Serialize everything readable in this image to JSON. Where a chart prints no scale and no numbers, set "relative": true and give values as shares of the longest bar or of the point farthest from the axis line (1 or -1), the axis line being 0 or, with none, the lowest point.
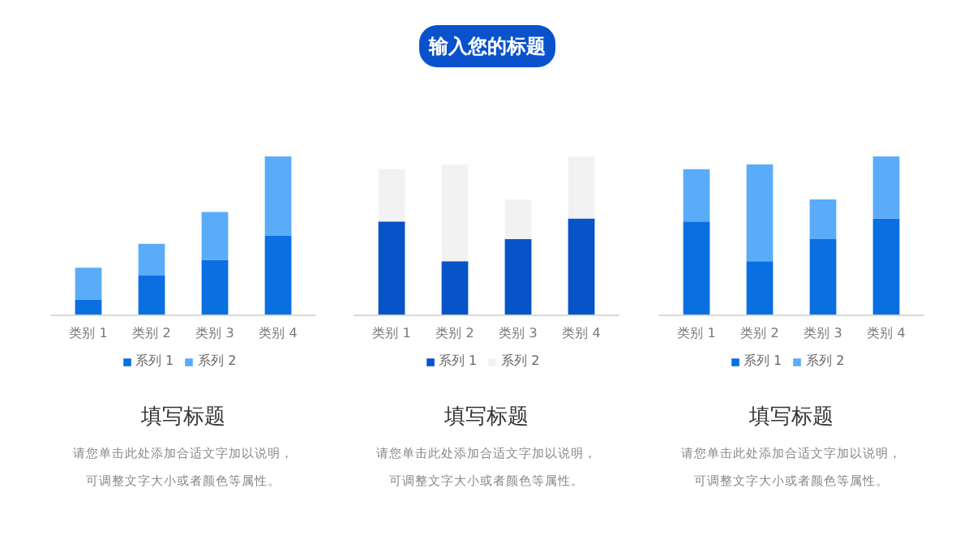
{
  "chart_data": [
    {
      "type": "other",
      "title": "输入您的标题"
    },
    {
      "type": "bar",
      "stacked": true,
      "relative": true,
      "legend": "bottom",
      "title": "填写标题",
      "annotations": [
        "请您单击此处添加合适文字加以说明，",
        "可调整文字大小或者颜色等属性。"
      ],
      "categories": [
        "类别 1",
        "类别 2",
        "类别 3",
        "类别 4"
      ],
      "series": [
        {
          "name": "系列 1",
          "color": "#0a6fe0",
          "values": [
            0.1,
            0.25,
            0.35,
            0.5
          ]
        },
        {
          "name": "系列 2",
          "color": "#5aacf8",
          "values": [
            0.2,
            0.2,
            0.3,
            0.5
          ]
        }
      ]
    },
    {
      "type": "bar",
      "stacked": true,
      "relative": true,
      "legend": "bottom",
      "title": "填写标题",
      "annotations": [
        "请您单击此处添加合适文字加以说明，",
        "可调整文字大小或者颜色等属性。"
      ],
      "categories": [
        "类别 1",
        "类别 2",
        "类别 3",
        "类别 4"
      ],
      "series": [
        {
          "name": "系列 1",
          "color": "#0753c8",
          "values": [
            0.59,
            0.34,
            0.48,
            0.61
          ]
        },
        {
          "name": "系列 2",
          "color": "#f2f2f2",
          "values": [
            0.33,
            0.61,
            0.25,
            0.39
          ]
        }
      ]
    },
    {
      "type": "bar",
      "stacked": true,
      "relative": true,
      "legend": "bottom",
      "title": "填写标题",
      "annotations": [
        "请您单击此处添加合适文字加以说明，",
        "可调整文字大小或者颜色等属性。"
      ],
      "categories": [
        "类别 1",
        "类别 2",
        "类别 3",
        "类别 4"
      ],
      "series": [
        {
          "name": "系列 1",
          "color": "#0a6fe0",
          "values": [
            0.59,
            0.34,
            0.48,
            0.61
          ]
        },
        {
          "name": "系列 2",
          "color": "#5aacf8",
          "values": [
            0.33,
            0.61,
            0.25,
            0.39
          ]
        }
      ]
    }
  ]
}
